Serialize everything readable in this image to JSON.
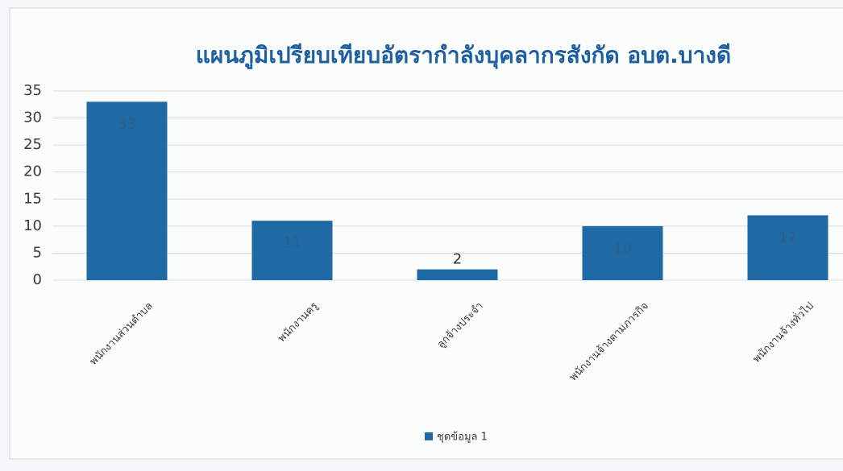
{
  "chart_data": {
    "type": "bar",
    "title": "แผนภูมิเปรียบเทียบอัตรากำลังบุคลากรสังกัด อบต.บางดี",
    "categories": [
      "พนักงานส่วนตำบล",
      "พนักงานครู",
      "ลูกจ้างประจำ",
      "พนักงานจ้างตามภารกิจ",
      "พนักงานจ้างทั่วไป"
    ],
    "series": [
      {
        "name": "ชุดข้อมูล 1",
        "color": "#1f6aa5",
        "values": [
          33,
          11,
          2,
          10,
          12
        ]
      }
    ],
    "ylim": [
      0,
      35
    ],
    "yticks": [
      0,
      5,
      10,
      15,
      20,
      25,
      30,
      35
    ],
    "grid": true,
    "legend": "bottom",
    "data_labels": true
  }
}
